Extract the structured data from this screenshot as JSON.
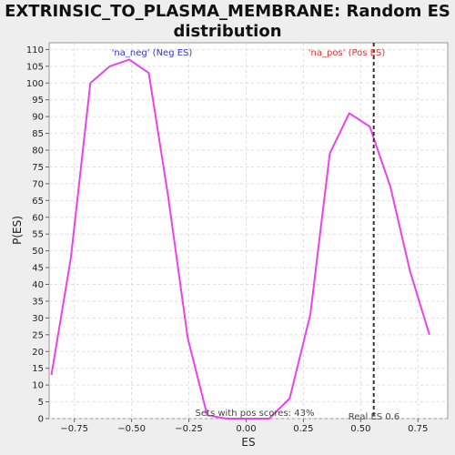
{
  "chart_data": {
    "type": "line",
    "title_line1": "EXTRINSIC_TO_PLASMA_MEMBRANE: Random ES",
    "title_line2": "distribution",
    "xlabel": "ES",
    "ylabel": "P(ES)",
    "xlim": [
      -0.86,
      0.88
    ],
    "ylim": [
      0,
      112
    ],
    "xticks": [
      -0.75,
      -0.5,
      -0.25,
      0.0,
      0.25,
      0.5,
      0.75
    ],
    "xtick_labels": [
      "−0.75",
      "−0.50",
      "−0.25",
      "0.00",
      "0.25",
      "0.50",
      "0.75"
    ],
    "yticks": [
      0,
      5,
      10,
      15,
      20,
      25,
      30,
      35,
      40,
      45,
      50,
      55,
      60,
      65,
      70,
      75,
      80,
      85,
      90,
      95,
      100,
      105,
      110
    ],
    "grid": true,
    "line_color": "#e844e8",
    "series": [
      {
        "x": [
          -0.85,
          -0.765,
          -0.68,
          -0.595,
          -0.51,
          -0.425,
          -0.34,
          -0.255,
          -0.17,
          -0.085,
          0.0,
          0.1,
          0.19,
          0.28,
          0.365,
          0.45,
          0.54,
          0.63,
          0.715,
          0.8
        ],
        "y": [
          13,
          48,
          100,
          105,
          107,
          103,
          66,
          24,
          1,
          0,
          0,
          0,
          6,
          31,
          79,
          91,
          87,
          69,
          44,
          25
        ]
      }
    ],
    "real_es": 0.557,
    "real_es_label": "Real ES 0.6",
    "neg_label": "'na_neg' (Neg ES)",
    "neg_color": "#3333cc",
    "pos_label": "'na_pos' (Pos ES)",
    "pos_color": "#dd3333",
    "footnote": "Sets with pos scores: 43%"
  }
}
